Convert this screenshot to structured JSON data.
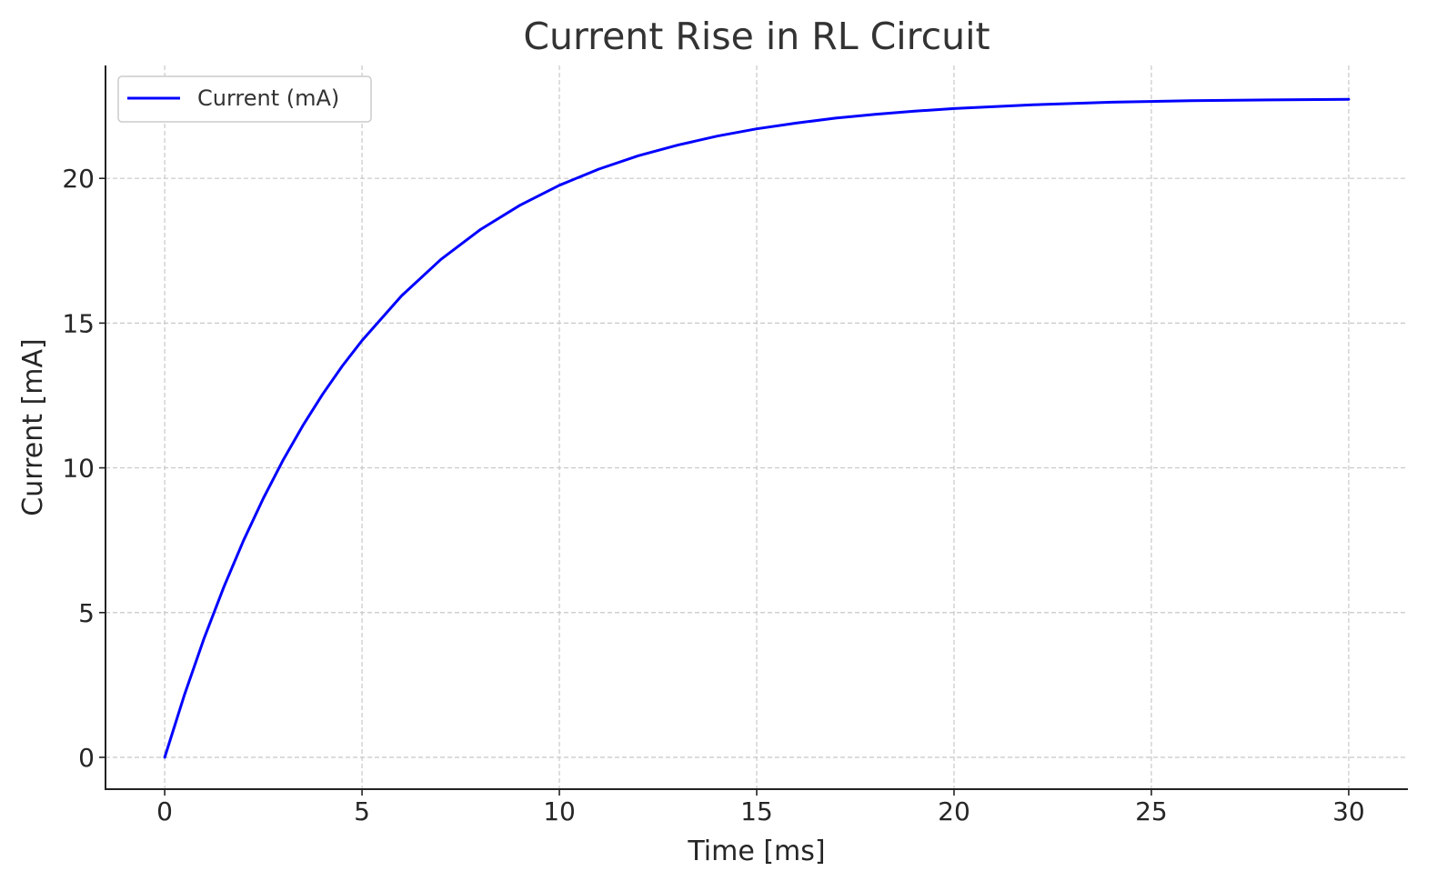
{
  "chart_data": {
    "type": "line",
    "title": "Current Rise in RL Circuit",
    "xlabel": "Time [ms]",
    "ylabel": "Current [mA]",
    "xlim": [
      -1.5,
      31.5
    ],
    "ylim": [
      -1.1,
      23.9
    ],
    "x_ticks": [
      0,
      5,
      10,
      15,
      20,
      25,
      30
    ],
    "y_ticks": [
      0,
      5,
      10,
      15,
      20
    ],
    "grid": true,
    "legend_position": "top-left",
    "series": [
      {
        "name": "Current (mA)",
        "color": "#0000ff",
        "x": [
          0,
          0.5,
          1,
          1.5,
          2,
          2.5,
          3,
          3.5,
          4,
          4.5,
          5,
          6,
          7,
          8,
          9,
          10,
          11,
          12,
          13,
          14,
          15,
          16,
          17,
          18,
          19,
          20,
          22,
          24,
          26,
          28,
          30
        ],
        "y": [
          0,
          2.16,
          4.12,
          5.89,
          7.5,
          8.95,
          10.27,
          11.46,
          12.54,
          13.52,
          14.4,
          15.94,
          17.2,
          18.23,
          19.07,
          19.76,
          20.32,
          20.78,
          21.15,
          21.46,
          21.71,
          21.91,
          22.08,
          22.21,
          22.32,
          22.41,
          22.54,
          22.63,
          22.68,
          22.71,
          22.73
        ]
      }
    ]
  }
}
